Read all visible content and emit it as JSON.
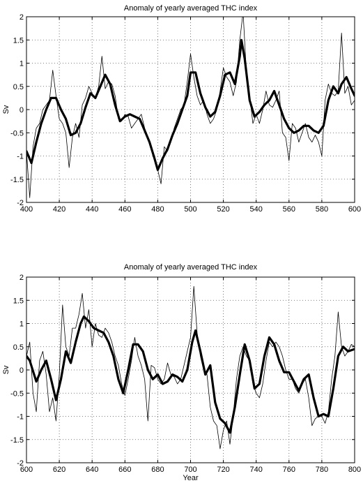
{
  "chart_data": [
    {
      "type": "line",
      "title": "Anomaly of yearly averaged THC index",
      "xlabel": "",
      "ylabel": "Sv",
      "xlim": [
        400,
        600
      ],
      "ylim": [
        -2,
        2
      ],
      "xticks": [
        "400",
        "420",
        "440",
        "460",
        "480",
        "500",
        "520",
        "540",
        "560",
        "580",
        "600"
      ],
      "yticks": [
        "-2",
        "-1.5",
        "-1",
        "-0.5",
        "0",
        "0.5",
        "1",
        "1.5",
        "2"
      ],
      "grid": true,
      "series": [
        {
          "style": "thin",
          "x": [
            400,
            402,
            404,
            406,
            408,
            410,
            412,
            414,
            416,
            418,
            420,
            422,
            424,
            426,
            428,
            430,
            432,
            434,
            436,
            438,
            440,
            442,
            444,
            446,
            448,
            450,
            452,
            454,
            456,
            458,
            460,
            462,
            464,
            466,
            468,
            470,
            472,
            474,
            476,
            478,
            480,
            482,
            484,
            486,
            488,
            490,
            492,
            494,
            496,
            498,
            500,
            502,
            504,
            506,
            508,
            510,
            512,
            514,
            516,
            518,
            520,
            522,
            524,
            526,
            528,
            530,
            532,
            534,
            536,
            538,
            540,
            542,
            544,
            546,
            548,
            550,
            552,
            554,
            556,
            558,
            560,
            562,
            564,
            566,
            568,
            570,
            572,
            574,
            576,
            578,
            580,
            582,
            584,
            586,
            588,
            590,
            592,
            594,
            596,
            598,
            600
          ],
          "values": [
            -0.9,
            -1.9,
            -0.8,
            -0.4,
            -0.3,
            0.0,
            0.1,
            0.2,
            0.85,
            0.3,
            -0.2,
            -0.3,
            -0.5,
            -1.25,
            -0.6,
            -0.3,
            -0.6,
            0.1,
            0.25,
            0.5,
            0.35,
            0.25,
            0.5,
            1.15,
            0.45,
            0.6,
            0.55,
            0.3,
            -0.2,
            -0.25,
            -0.1,
            -0.15,
            -0.4,
            -0.3,
            -0.2,
            -0.1,
            -0.4,
            -0.6,
            -0.8,
            -1.05,
            -1.3,
            -1.6,
            -0.8,
            -0.9,
            -0.7,
            -0.4,
            -0.2,
            0.0,
            0.1,
            0.6,
            1.2,
            0.7,
            0.3,
            0.1,
            0.2,
            -0.1,
            -0.3,
            -0.2,
            0.0,
            0.4,
            0.9,
            0.7,
            0.6,
            0.3,
            0.6,
            1.5,
            2.1,
            0.8,
            0.3,
            -0.3,
            -0.1,
            -0.3,
            0.0,
            0.4,
            0.1,
            0.05,
            0.2,
            0.4,
            -0.5,
            -0.6,
            -1.1,
            -0.3,
            -0.4,
            -0.7,
            -0.5,
            -0.3,
            -0.6,
            -0.7,
            -0.55,
            -0.7,
            -1.0,
            0.2,
            0.55,
            0.35,
            0.3,
            0.4,
            1.65,
            0.35,
            0.5,
            0.1,
            0.2
          ]
        },
        {
          "style": "thick",
          "x": [
            400,
            403,
            406,
            409,
            412,
            415,
            418,
            421,
            424,
            427,
            430,
            433,
            436,
            439,
            442,
            445,
            448,
            451,
            454,
            457,
            460,
            463,
            466,
            469,
            472,
            475,
            478,
            480,
            483,
            486,
            489,
            492,
            495,
            498,
            500,
            503,
            506,
            509,
            512,
            515,
            518,
            521,
            524,
            527,
            530,
            531,
            533,
            536,
            539,
            542,
            545,
            548,
            551,
            554,
            557,
            560,
            563,
            566,
            569,
            572,
            575,
            578,
            581,
            584,
            587,
            590,
            592,
            595,
            598,
            600
          ],
          "values": [
            -0.9,
            -1.15,
            -0.7,
            -0.3,
            0.0,
            0.25,
            0.25,
            0.0,
            -0.2,
            -0.55,
            -0.5,
            -0.3,
            0.05,
            0.35,
            0.25,
            0.5,
            0.75,
            0.55,
            0.1,
            -0.25,
            -0.15,
            -0.1,
            -0.15,
            -0.2,
            -0.45,
            -0.7,
            -1.05,
            -1.3,
            -1.05,
            -0.85,
            -0.55,
            -0.3,
            0.0,
            0.3,
            0.8,
            0.8,
            0.35,
            0.05,
            -0.15,
            -0.05,
            0.3,
            0.75,
            0.8,
            0.55,
            1.15,
            1.5,
            1.1,
            0.2,
            -0.15,
            -0.05,
            0.1,
            0.2,
            0.4,
            0.1,
            -0.2,
            -0.4,
            -0.5,
            -0.45,
            -0.35,
            -0.35,
            -0.45,
            -0.5,
            -0.35,
            0.2,
            0.5,
            0.35,
            0.55,
            0.7,
            0.45,
            0.3
          ]
        }
      ]
    },
    {
      "type": "line",
      "title": "Anomaly of yearly averaged THC index",
      "xlabel": "Year",
      "ylabel": "Sv",
      "xlim": [
        600,
        800
      ],
      "ylim": [
        -2,
        2
      ],
      "xticks": [
        "600",
        "620",
        "640",
        "660",
        "680",
        "700",
        "720",
        "740",
        "760",
        "780",
        "800"
      ],
      "yticks": [
        "-2",
        "-1.5",
        "-1",
        "-0.5",
        "0",
        "0.5",
        "1",
        "1.5",
        "2"
      ],
      "grid": true,
      "series": [
        {
          "style": "thin",
          "x": [
            600,
            602,
            604,
            606,
            608,
            610,
            612,
            614,
            616,
            618,
            620,
            622,
            624,
            626,
            628,
            630,
            632,
            634,
            636,
            638,
            640,
            642,
            644,
            646,
            648,
            650,
            652,
            654,
            656,
            658,
            660,
            662,
            664,
            666,
            668,
            670,
            672,
            674,
            676,
            678,
            680,
            682,
            684,
            686,
            688,
            690,
            692,
            694,
            696,
            698,
            700,
            702,
            704,
            706,
            708,
            710,
            712,
            714,
            716,
            718,
            720,
            722,
            724,
            726,
            728,
            730,
            732,
            734,
            736,
            738,
            740,
            742,
            744,
            746,
            748,
            750,
            752,
            754,
            756,
            758,
            760,
            762,
            764,
            766,
            768,
            770,
            772,
            774,
            776,
            778,
            780,
            782,
            784,
            786,
            788,
            790,
            792,
            794,
            796,
            798,
            800
          ],
          "values": [
            0.3,
            0.6,
            -0.5,
            -0.9,
            0.2,
            0.4,
            -0.1,
            -0.9,
            -0.6,
            -1.1,
            -0.1,
            1.4,
            0.5,
            0.3,
            0.9,
            0.9,
            1.2,
            1.65,
            0.9,
            1.3,
            0.5,
            1.0,
            0.75,
            0.7,
            0.9,
            0.8,
            0.6,
            0.3,
            0.1,
            -0.3,
            -0.55,
            -0.2,
            0.2,
            0.7,
            0.3,
            0.1,
            -0.2,
            -1.1,
            0.1,
            0.05,
            -0.2,
            -0.3,
            -0.2,
            0.15,
            -0.1,
            -0.15,
            -0.3,
            -0.2,
            0.1,
            0.4,
            0.7,
            1.8,
            0.8,
            0.3,
            0.0,
            -0.1,
            -0.8,
            -1.1,
            -1.2,
            -1.7,
            -1.3,
            -1.1,
            -1.6,
            -1.0,
            -0.2,
            0.3,
            0.5,
            0.3,
            0.2,
            -0.3,
            -0.5,
            -0.6,
            -0.3,
            0.2,
            0.6,
            0.5,
            0.6,
            0.5,
            0.3,
            0.0,
            -0.2,
            -0.2,
            -0.4,
            -0.5,
            -0.3,
            -0.2,
            -0.6,
            -1.2,
            -1.05,
            -1.0,
            -1.0,
            -1.15,
            -0.9,
            -0.2,
            0.3,
            1.25,
            0.5,
            0.3,
            0.4,
            0.55,
            0.5
          ]
        },
        {
          "style": "thick",
          "x": [
            600,
            602,
            606,
            609,
            612,
            615,
            618,
            621,
            624,
            627,
            630,
            633,
            635,
            638,
            641,
            644,
            647,
            650,
            653,
            656,
            659,
            662,
            665,
            668,
            671,
            674,
            677,
            680,
            683,
            686,
            689,
            692,
            695,
            698,
            701,
            703,
            706,
            709,
            712,
            715,
            718,
            721,
            724,
            727,
            730,
            733,
            736,
            739,
            742,
            745,
            748,
            751,
            754,
            757,
            760,
            763,
            766,
            769,
            772,
            775,
            778,
            781,
            784,
            787,
            790,
            793,
            796,
            800
          ],
          "values": [
            0.3,
            0.2,
            -0.25,
            0.0,
            0.2,
            -0.2,
            -0.65,
            -0.2,
            0.4,
            0.15,
            0.6,
            1.0,
            1.15,
            1.05,
            0.9,
            0.85,
            0.8,
            0.6,
            0.3,
            -0.2,
            -0.5,
            0.0,
            0.55,
            0.55,
            0.4,
            0.0,
            -0.2,
            -0.1,
            -0.3,
            -0.25,
            -0.1,
            -0.15,
            -0.25,
            0.0,
            0.6,
            0.85,
            0.4,
            -0.1,
            0.1,
            -0.7,
            -1.05,
            -1.15,
            -1.35,
            -0.8,
            -0.1,
            0.55,
            0.2,
            -0.4,
            -0.3,
            0.3,
            0.7,
            0.55,
            0.2,
            -0.05,
            -0.05,
            -0.25,
            -0.45,
            -0.2,
            -0.1,
            -0.6,
            -1.0,
            -0.95,
            -1.0,
            -0.4,
            0.3,
            0.5,
            0.4,
            0.45
          ]
        }
      ]
    }
  ]
}
